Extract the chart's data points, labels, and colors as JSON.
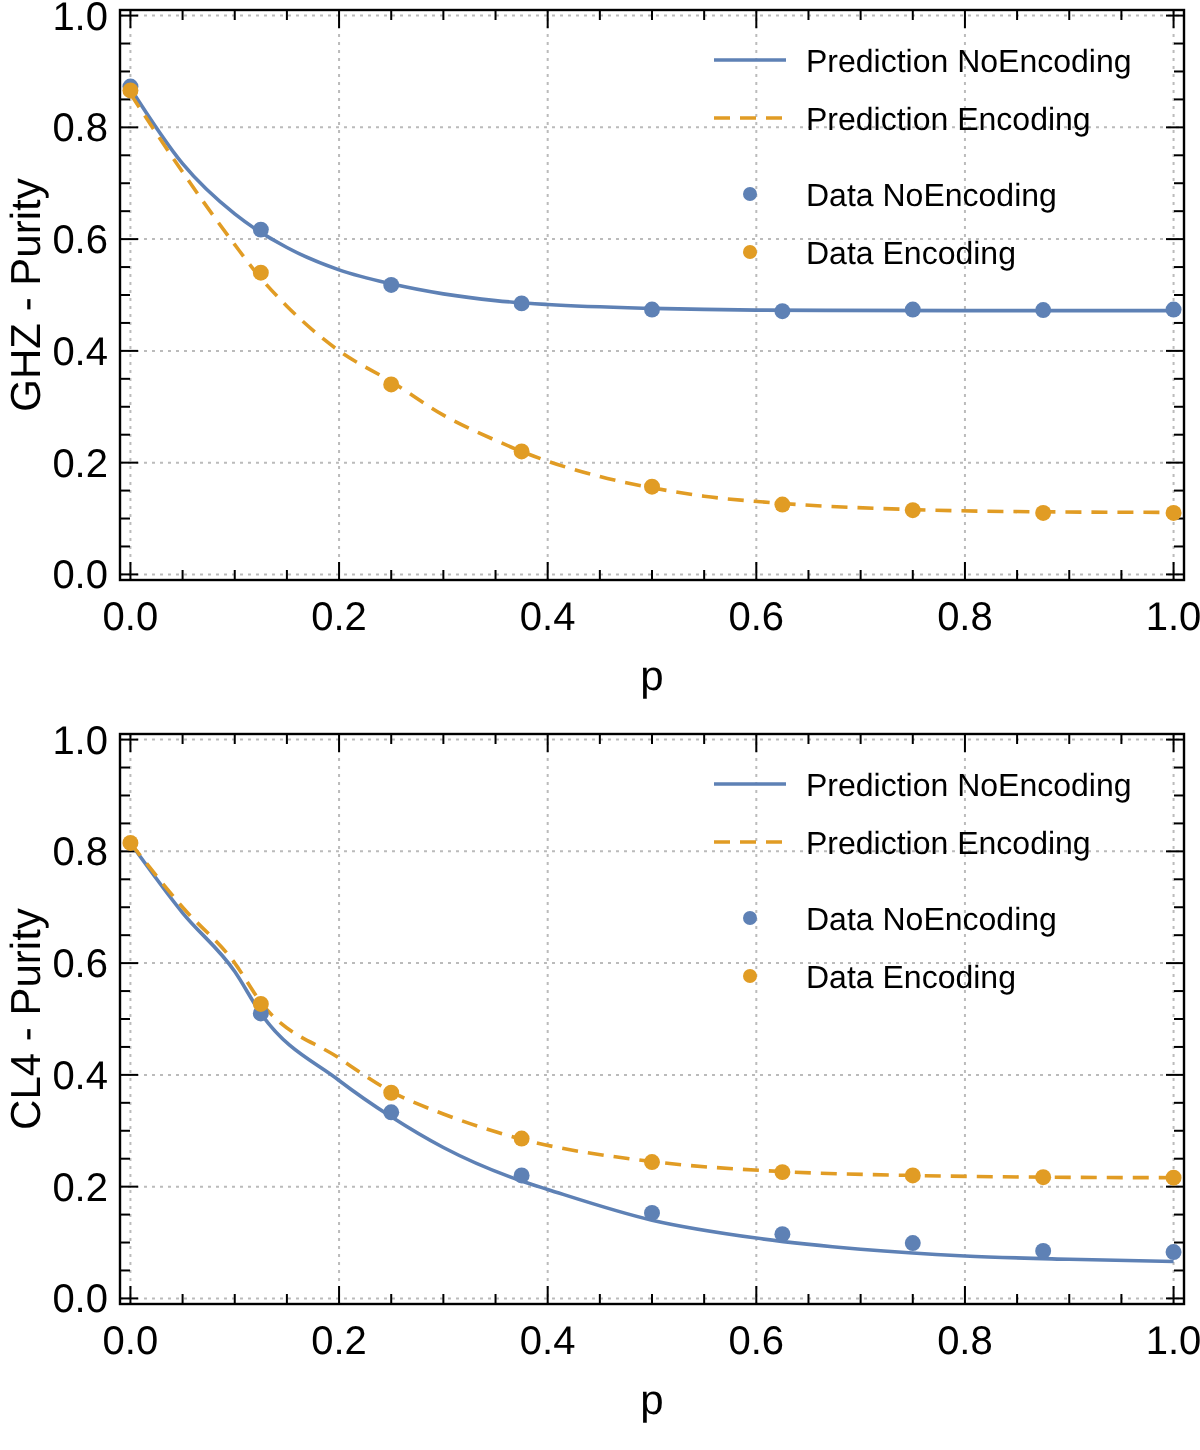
{
  "chart_data": [
    {
      "type": "line",
      "xlabel": "p",
      "ylabel": "GHZ - Purity",
      "xlim": [
        -0.01,
        1.01
      ],
      "ylim": [
        -0.01,
        1.01
      ],
      "xticks": [
        {
          "value": 0,
          "label": "0.0"
        },
        {
          "value": 0.05,
          "label": null
        },
        {
          "value": 0.1,
          "label": null
        },
        {
          "value": 0.15,
          "label": null
        },
        {
          "value": 0.2,
          "label": "0.2"
        },
        {
          "value": 0.25,
          "label": null
        },
        {
          "value": 0.3,
          "label": null
        },
        {
          "value": 0.35,
          "label": null
        },
        {
          "value": 0.4,
          "label": "0.4"
        },
        {
          "value": 0.45,
          "label": null
        },
        {
          "value": 0.5,
          "label": null
        },
        {
          "value": 0.55,
          "label": null
        },
        {
          "value": 0.6,
          "label": "0.6"
        },
        {
          "value": 0.65,
          "label": null
        },
        {
          "value": 0.7,
          "label": null
        },
        {
          "value": 0.75,
          "label": null
        },
        {
          "value": 0.8,
          "label": "0.8"
        },
        {
          "value": 0.85,
          "label": null
        },
        {
          "value": 0.9,
          "label": null
        },
        {
          "value": 0.95,
          "label": null
        },
        {
          "value": 1,
          "label": "1.0"
        }
      ],
      "yticks": [
        {
          "value": 0,
          "label": "0.0"
        },
        {
          "value": 0.05,
          "label": null
        },
        {
          "value": 0.1,
          "label": null
        },
        {
          "value": 0.15,
          "label": null
        },
        {
          "value": 0.2,
          "label": "0.2"
        },
        {
          "value": 0.25,
          "label": null
        },
        {
          "value": 0.3,
          "label": null
        },
        {
          "value": 0.35,
          "label": null
        },
        {
          "value": 0.4,
          "label": "0.4"
        },
        {
          "value": 0.45,
          "label": null
        },
        {
          "value": 0.5,
          "label": null
        },
        {
          "value": 0.55,
          "label": null
        },
        {
          "value": 0.6,
          "label": "0.6"
        },
        {
          "value": 0.65,
          "label": null
        },
        {
          "value": 0.7,
          "label": null
        },
        {
          "value": 0.75,
          "label": null
        },
        {
          "value": 0.8,
          "label": "0.8"
        },
        {
          "value": 0.85,
          "label": null
        },
        {
          "value": 0.9,
          "label": null
        },
        {
          "value": 0.95,
          "label": null
        },
        {
          "value": 1,
          "label": "1.0"
        }
      ],
      "grid": true,
      "legend": "top right",
      "series": [
        {
          "name": "Prediction NoEncoding",
          "type": "line",
          "line_style": "solid",
          "marker": "none",
          "color": "#5e81b5",
          "x": [
            0,
            0.05,
            0.1,
            0.15,
            0.2,
            0.25,
            0.3,
            0.35,
            0.4,
            0.5,
            0.6,
            0.8,
            1.0
          ],
          "values": [
            0.87,
            0.735,
            0.645,
            0.585,
            0.545,
            0.52,
            0.502,
            0.49,
            0.483,
            0.476,
            0.473,
            0.472,
            0.472
          ]
        },
        {
          "name": "Prediction Encoding",
          "type": "line",
          "line_style": "dashed",
          "marker": "none",
          "color": "#e19c24",
          "x": [
            0,
            0.05,
            0.1,
            0.125,
            0.15,
            0.2,
            0.25,
            0.3,
            0.35,
            0.375,
            0.45,
            0.5,
            0.55,
            0.625,
            0.75,
            0.875,
            1.0
          ],
          "values": [
            0.86,
            0.72,
            0.59,
            0.53,
            0.48,
            0.4,
            0.345,
            0.285,
            0.24,
            0.22,
            0.175,
            0.155,
            0.14,
            0.127,
            0.116,
            0.112,
            0.111
          ]
        },
        {
          "name": "Data NoEncoding",
          "type": "scatter",
          "marker": "circle",
          "color": "#5e81b5",
          "x": [
            0,
            0.125,
            0.25,
            0.375,
            0.5,
            0.625,
            0.75,
            0.875,
            1.0
          ],
          "values": [
            0.873,
            0.617,
            0.518,
            0.485,
            0.474,
            0.471,
            0.474,
            0.473,
            0.474
          ]
        },
        {
          "name": "Data Encoding",
          "type": "scatter",
          "marker": "circle",
          "color": "#e19c24",
          "x": [
            0,
            0.125,
            0.25,
            0.375,
            0.5,
            0.625,
            0.75,
            0.875,
            1.0
          ],
          "values": [
            0.866,
            0.54,
            0.34,
            0.22,
            0.157,
            0.125,
            0.115,
            0.11,
            0.11
          ]
        }
      ]
    },
    {
      "type": "line",
      "xlabel": "p",
      "ylabel": "CL4 - Purity",
      "xlim": [
        -0.01,
        1.01
      ],
      "ylim": [
        -0.01,
        1.01
      ],
      "xticks": [
        {
          "value": 0,
          "label": "0.0"
        },
        {
          "value": 0.05,
          "label": null
        },
        {
          "value": 0.1,
          "label": null
        },
        {
          "value": 0.15,
          "label": null
        },
        {
          "value": 0.2,
          "label": "0.2"
        },
        {
          "value": 0.25,
          "label": null
        },
        {
          "value": 0.3,
          "label": null
        },
        {
          "value": 0.35,
          "label": null
        },
        {
          "value": 0.4,
          "label": "0.4"
        },
        {
          "value": 0.45,
          "label": null
        },
        {
          "value": 0.5,
          "label": null
        },
        {
          "value": 0.55,
          "label": null
        },
        {
          "value": 0.6,
          "label": "0.6"
        },
        {
          "value": 0.65,
          "label": null
        },
        {
          "value": 0.7,
          "label": null
        },
        {
          "value": 0.75,
          "label": null
        },
        {
          "value": 0.8,
          "label": "0.8"
        },
        {
          "value": 0.85,
          "label": null
        },
        {
          "value": 0.9,
          "label": null
        },
        {
          "value": 0.95,
          "label": null
        },
        {
          "value": 1,
          "label": "1.0"
        }
      ],
      "yticks": [
        {
          "value": 0,
          "label": "0.0"
        },
        {
          "value": 0.05,
          "label": null
        },
        {
          "value": 0.1,
          "label": null
        },
        {
          "value": 0.15,
          "label": null
        },
        {
          "value": 0.2,
          "label": "0.2"
        },
        {
          "value": 0.25,
          "label": null
        },
        {
          "value": 0.3,
          "label": null
        },
        {
          "value": 0.35,
          "label": null
        },
        {
          "value": 0.4,
          "label": "0.4"
        },
        {
          "value": 0.45,
          "label": null
        },
        {
          "value": 0.5,
          "label": null
        },
        {
          "value": 0.55,
          "label": null
        },
        {
          "value": 0.6,
          "label": "0.6"
        },
        {
          "value": 0.65,
          "label": null
        },
        {
          "value": 0.7,
          "label": null
        },
        {
          "value": 0.75,
          "label": null
        },
        {
          "value": 0.8,
          "label": "0.8"
        },
        {
          "value": 0.85,
          "label": null
        },
        {
          "value": 0.9,
          "label": null
        },
        {
          "value": 0.95,
          "label": null
        },
        {
          "value": 1,
          "label": "1.0"
        }
      ],
      "grid": true,
      "legend": "top right",
      "series": [
        {
          "name": "Prediction NoEncoding",
          "type": "line",
          "line_style": "solid",
          "marker": "none",
          "color": "#5e81b5",
          "x": [
            0,
            0.05,
            0.1,
            0.125,
            0.2,
            0.25,
            0.3,
            0.375,
            0.4,
            0.5,
            0.6,
            0.7,
            0.8,
            0.9,
            1.0
          ],
          "values": [
            0.815,
            0.69,
            0.585,
            0.51,
            0.39,
            0.325,
            0.27,
            0.21,
            0.195,
            0.14,
            0.108,
            0.088,
            0.076,
            0.07,
            0.066
          ]
        },
        {
          "name": "Prediction Encoding",
          "type": "line",
          "line_style": "dashed",
          "marker": "none",
          "color": "#e19c24",
          "x": [
            0,
            0.05,
            0.1,
            0.125,
            0.2,
            0.25,
            0.3,
            0.375,
            0.5,
            0.625,
            0.75,
            0.875,
            1.0
          ],
          "values": [
            0.815,
            0.7,
            0.6,
            0.53,
            0.43,
            0.37,
            0.33,
            0.285,
            0.245,
            0.227,
            0.22,
            0.217,
            0.216
          ]
        },
        {
          "name": "Data NoEncoding",
          "type": "scatter",
          "marker": "circle",
          "color": "#5e81b5",
          "x": [
            0.125,
            0.25,
            0.375,
            0.5,
            0.625,
            0.75,
            0.875,
            1.0
          ],
          "values": [
            0.51,
            0.333,
            0.22,
            0.153,
            0.115,
            0.099,
            0.085,
            0.083
          ]
        },
        {
          "name": "Data Encoding",
          "type": "scatter",
          "marker": "circle",
          "color": "#e19c24",
          "x": [
            0,
            0.125,
            0.25,
            0.375,
            0.5,
            0.625,
            0.75,
            0.875,
            1.0
          ],
          "values": [
            0.815,
            0.527,
            0.368,
            0.286,
            0.244,
            0.226,
            0.22,
            0.217,
            0.216
          ]
        }
      ]
    }
  ]
}
